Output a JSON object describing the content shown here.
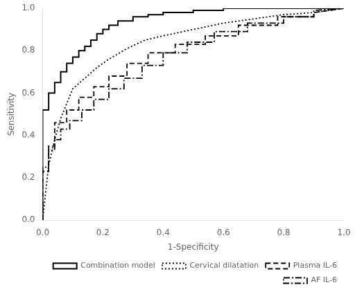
{
  "chart_data": {
    "type": "line",
    "xlabel": "1-Specificity",
    "ylabel": "Sensitivity",
    "xlim": [
      0.0,
      1.0
    ],
    "ylim": [
      0.0,
      1.0
    ],
    "xticks": [
      {
        "value": 0.0,
        "label": "0.0"
      },
      0.2,
      0.4,
      0.6,
      0.8,
      {
        "value": 1.0,
        "label": "1.0"
      }
    ],
    "yticks": [
      {
        "value": 0.0,
        "label": "0.0"
      },
      0.2,
      0.4,
      0.6,
      0.8,
      {
        "value": 1.0,
        "label": "1.0"
      }
    ],
    "grid": false,
    "legend": "lower right",
    "series": [
      {
        "name": "Combination model",
        "color": "#000000",
        "line_style": "solid",
        "x": [
          0.0,
          0.0,
          0.02,
          0.02,
          0.04,
          0.04,
          0.06,
          0.06,
          0.08,
          0.08,
          0.1,
          0.1,
          0.12,
          0.12,
          0.14,
          0.14,
          0.16,
          0.16,
          0.18,
          0.18,
          0.2,
          0.2,
          0.22,
          0.22,
          0.25,
          0.25,
          0.3,
          0.3,
          0.35,
          0.35,
          0.4,
          0.4,
          0.5,
          0.5,
          0.6,
          0.6,
          0.65,
          0.65,
          1.0
        ],
        "values": [
          0.0,
          0.52,
          0.52,
          0.6,
          0.6,
          0.65,
          0.65,
          0.7,
          0.7,
          0.74,
          0.74,
          0.77,
          0.77,
          0.8,
          0.8,
          0.82,
          0.82,
          0.85,
          0.85,
          0.88,
          0.88,
          0.9,
          0.9,
          0.92,
          0.92,
          0.94,
          0.94,
          0.96,
          0.96,
          0.97,
          0.97,
          0.98,
          0.98,
          0.99,
          0.99,
          1.0,
          1.0,
          1.0,
          1.0
        ]
      },
      {
        "name": "Cervical dilatation",
        "color": "#000000",
        "line_style": "dotted",
        "x": [
          0.0,
          0.02,
          0.04,
          0.06,
          0.08,
          0.1,
          0.14,
          0.18,
          0.22,
          0.28,
          0.34,
          0.4,
          0.5,
          0.6,
          0.7,
          0.8,
          0.9,
          1.0
        ],
        "values": [
          0.0,
          0.26,
          0.38,
          0.48,
          0.55,
          0.62,
          0.67,
          0.72,
          0.76,
          0.81,
          0.85,
          0.87,
          0.9,
          0.93,
          0.95,
          0.97,
          0.98,
          1.0
        ]
      },
      {
        "name": "Plasma IL-6",
        "color": "#000000",
        "line_style": "dashed",
        "x": [
          0.0,
          0.0,
          0.02,
          0.02,
          0.04,
          0.04,
          0.08,
          0.08,
          0.12,
          0.12,
          0.17,
          0.17,
          0.22,
          0.22,
          0.28,
          0.28,
          0.35,
          0.35,
          0.44,
          0.44,
          0.54,
          0.54,
          0.65,
          0.65,
          0.78,
          0.78,
          0.9,
          0.9,
          1.0
        ],
        "values": [
          0.0,
          0.23,
          0.23,
          0.35,
          0.35,
          0.46,
          0.46,
          0.52,
          0.52,
          0.58,
          0.58,
          0.63,
          0.63,
          0.68,
          0.68,
          0.74,
          0.74,
          0.79,
          0.79,
          0.83,
          0.83,
          0.87,
          0.87,
          0.92,
          0.92,
          0.96,
          0.96,
          0.98,
          1.0
        ]
      },
      {
        "name": "AF IL-6",
        "color": "#000000",
        "line_style": "dashdot",
        "x": [
          0.0,
          0.0,
          0.02,
          0.02,
          0.04,
          0.04,
          0.06,
          0.06,
          0.09,
          0.09,
          0.13,
          0.13,
          0.17,
          0.17,
          0.22,
          0.22,
          0.27,
          0.27,
          0.33,
          0.33,
          0.4,
          0.4,
          0.48,
          0.48,
          0.57,
          0.57,
          0.68,
          0.68,
          0.8,
          0.8,
          0.9,
          0.9,
          1.0
        ],
        "values": [
          0.0,
          0.25,
          0.25,
          0.33,
          0.33,
          0.38,
          0.38,
          0.43,
          0.43,
          0.47,
          0.47,
          0.52,
          0.52,
          0.57,
          0.57,
          0.62,
          0.62,
          0.67,
          0.67,
          0.73,
          0.73,
          0.79,
          0.79,
          0.84,
          0.84,
          0.89,
          0.89,
          0.93,
          0.93,
          0.96,
          0.96,
          0.99,
          1.0
        ]
      }
    ]
  }
}
